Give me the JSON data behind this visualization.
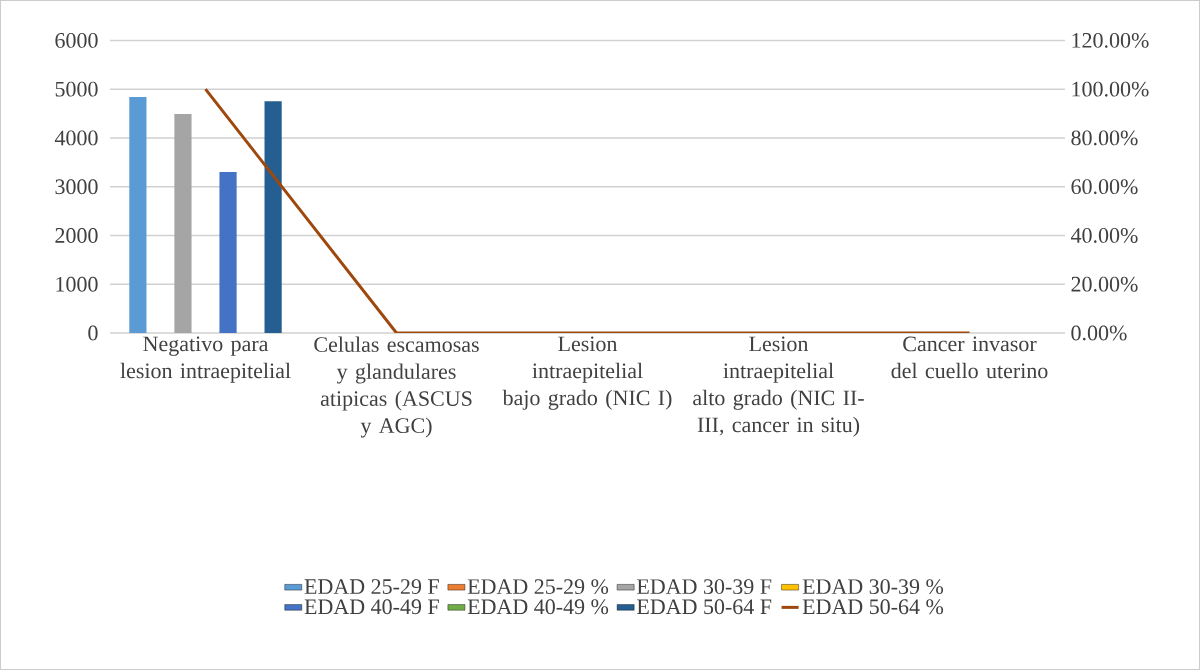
{
  "chart_data": {
    "type": "bar",
    "categories": [
      "Negativo para lesion intraepitelial",
      "Celulas escamosas y glandulares atipicas (ASCUS y AGC)",
      "Lesion intraepitelial bajo grado (NIC I)",
      "Lesion intraepitelial alto grado (NIC II-III, cancer in situ)",
      "Cancer invasor del cuello uterino"
    ],
    "series": [
      {
        "name": "EDAD 25-29 F",
        "color": "#5b9bd5",
        "values": [
          4840,
          0,
          0,
          0,
          0
        ]
      },
      {
        "name": "EDAD 25-29 %",
        "color": "#ed7d31",
        "values": [
          0,
          0,
          0,
          0,
          0
        ]
      },
      {
        "name": "EDAD 30-39 F",
        "color": "#a5a5a5",
        "values": [
          4490,
          0,
          0,
          0,
          0
        ]
      },
      {
        "name": "EDAD 30-39 %",
        "color": "#ffc000",
        "values": [
          0,
          0,
          0,
          0,
          0
        ]
      },
      {
        "name": "EDAD 40-49 F",
        "color": "#4472c4",
        "values": [
          3300,
          0,
          0,
          0,
          0
        ]
      },
      {
        "name": "EDAD 40-49 %",
        "color": "#70ad47",
        "values": [
          0,
          0,
          0,
          0,
          0
        ]
      },
      {
        "name": "EDAD 50-64 F",
        "color": "#255e91",
        "values": [
          4750,
          0,
          0,
          0,
          0
        ]
      },
      {
        "name": "EDAD 50-64 %",
        "color": "#9e480e",
        "type": "line",
        "axis": "y2",
        "values": [
          1,
          0,
          0,
          0,
          0
        ]
      }
    ],
    "ylim": [
      0,
      6000
    ],
    "yticks": [
      0,
      1000,
      2000,
      3000,
      4000,
      5000,
      6000
    ],
    "y2lim": [
      0,
      1.2
    ],
    "y2ticks": [
      {
        "value": 0,
        "label": "0.00%"
      },
      {
        "value": 0.2,
        "label": "20.00%"
      },
      {
        "value": 0.4,
        "label": "40.00%"
      },
      {
        "value": 0.6,
        "label": "60.00%"
      },
      {
        "value": 0.8,
        "label": "80.00%"
      },
      {
        "value": 1.0,
        "label": "100.00%"
      },
      {
        "value": 1.2,
        "label": "120.00%"
      }
    ],
    "grid": "y",
    "legend": "bottom"
  }
}
